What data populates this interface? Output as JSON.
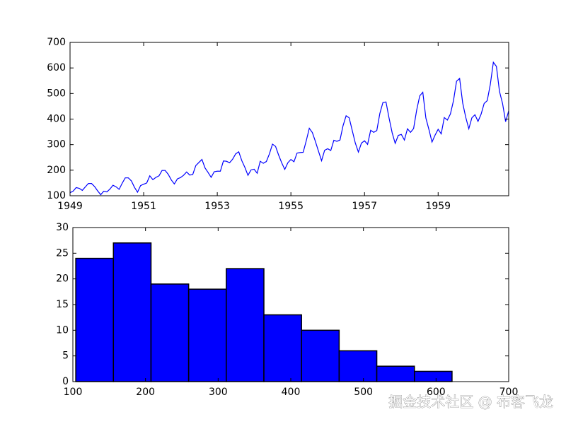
{
  "chart_data": [
    {
      "type": "line",
      "color": "#0000ff",
      "x": [
        "1949-01",
        "1949-02",
        "1949-03",
        "1949-04",
        "1949-05",
        "1949-06",
        "1949-07",
        "1949-08",
        "1949-09",
        "1949-10",
        "1949-11",
        "1949-12",
        "1950-01",
        "1950-02",
        "1950-03",
        "1950-04",
        "1950-05",
        "1950-06",
        "1950-07",
        "1950-08",
        "1950-09",
        "1950-10",
        "1950-11",
        "1950-12",
        "1951-01",
        "1951-02",
        "1951-03",
        "1951-04",
        "1951-05",
        "1951-06",
        "1951-07",
        "1951-08",
        "1951-09",
        "1951-10",
        "1951-11",
        "1951-12",
        "1952-01",
        "1952-02",
        "1952-03",
        "1952-04",
        "1952-05",
        "1952-06",
        "1952-07",
        "1952-08",
        "1952-09",
        "1952-10",
        "1952-11",
        "1952-12",
        "1953-01",
        "1953-02",
        "1953-03",
        "1953-04",
        "1953-05",
        "1953-06",
        "1953-07",
        "1953-08",
        "1953-09",
        "1953-10",
        "1953-11",
        "1953-12",
        "1954-01",
        "1954-02",
        "1954-03",
        "1954-04",
        "1954-05",
        "1954-06",
        "1954-07",
        "1954-08",
        "1954-09",
        "1954-10",
        "1954-11",
        "1954-12",
        "1955-01",
        "1955-02",
        "1955-03",
        "1955-04",
        "1955-05",
        "1955-06",
        "1955-07",
        "1955-08",
        "1955-09",
        "1955-10",
        "1955-11",
        "1955-12",
        "1956-01",
        "1956-02",
        "1956-03",
        "1956-04",
        "1956-05",
        "1956-06",
        "1956-07",
        "1956-08",
        "1956-09",
        "1956-10",
        "1956-11",
        "1956-12",
        "1957-01",
        "1957-02",
        "1957-03",
        "1957-04",
        "1957-05",
        "1957-06",
        "1957-07",
        "1957-08",
        "1957-09",
        "1957-10",
        "1957-11",
        "1957-12",
        "1958-01",
        "1958-02",
        "1958-03",
        "1958-04",
        "1958-05",
        "1958-06",
        "1958-07",
        "1958-08",
        "1958-09",
        "1958-10",
        "1958-11",
        "1958-12",
        "1959-01",
        "1959-02",
        "1959-03",
        "1959-04",
        "1959-05",
        "1959-06",
        "1959-07",
        "1959-08",
        "1959-09",
        "1959-10",
        "1959-11",
        "1959-12",
        "1960-01",
        "1960-02",
        "1960-03",
        "1960-04",
        "1960-05",
        "1960-06",
        "1960-07",
        "1960-08",
        "1960-09",
        "1960-10",
        "1960-11",
        "1960-12"
      ],
      "values": [
        112,
        118,
        132,
        129,
        121,
        135,
        148,
        148,
        136,
        119,
        104,
        118,
        115,
        126,
        141,
        135,
        125,
        149,
        170,
        170,
        158,
        133,
        114,
        140,
        145,
        150,
        178,
        163,
        172,
        178,
        199,
        199,
        184,
        162,
        146,
        166,
        171,
        180,
        193,
        181,
        183,
        218,
        230,
        242,
        209,
        191,
        172,
        194,
        196,
        196,
        236,
        235,
        229,
        243,
        264,
        272,
        237,
        211,
        180,
        201,
        204,
        188,
        235,
        227,
        234,
        264,
        302,
        293,
        259,
        229,
        203,
        229,
        242,
        233,
        267,
        269,
        270,
        315,
        364,
        347,
        312,
        274,
        237,
        278,
        284,
        277,
        317,
        313,
        318,
        374,
        413,
        405,
        355,
        306,
        271,
        306,
        315,
        301,
        356,
        348,
        355,
        422,
        465,
        467,
        404,
        347,
        305,
        336,
        340,
        318,
        362,
        348,
        363,
        435,
        491,
        505,
        404,
        359,
        310,
        337,
        360,
        342,
        406,
        396,
        420,
        472,
        548,
        559,
        463,
        407,
        362,
        405,
        417,
        391,
        419,
        461,
        472,
        535,
        622,
        606,
        508,
        461,
        390,
        432
      ],
      "xlim": [
        "1949-01",
        "1960-12"
      ],
      "xticks": [
        1949,
        1951,
        1953,
        1955,
        1957,
        1959
      ],
      "ylim": [
        100,
        700
      ],
      "yticks": [
        100,
        200,
        300,
        400,
        500,
        600,
        700
      ]
    },
    {
      "type": "histogram",
      "color": "#0000ff",
      "edgecolor": "#000000",
      "bins": [
        104,
        155.8,
        207.6,
        259.4,
        311.2,
        363,
        414.8,
        466.6,
        518.4,
        570.2,
        622
      ],
      "values": [
        24,
        27,
        19,
        18,
        22,
        13,
        10,
        6,
        3,
        2
      ],
      "xlim": [
        100,
        700
      ],
      "xticks": [
        100,
        200,
        300,
        400,
        500,
        600,
        700
      ],
      "ylim": [
        0,
        30
      ],
      "yticks": [
        0,
        5,
        10,
        15,
        20,
        25,
        30
      ]
    }
  ],
  "watermark": "掘金技术社区 @ 布客飞龙"
}
